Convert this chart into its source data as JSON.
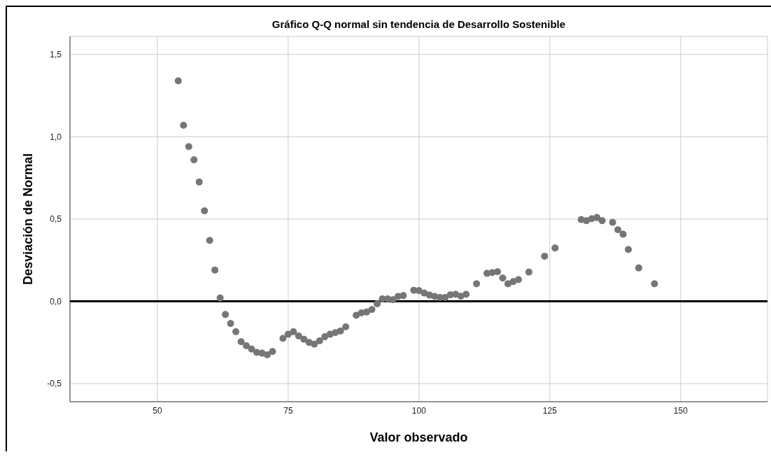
{
  "chart_data": {
    "type": "scatter",
    "title": "Gráfico Q-Q normal sin tendencia de Desarrollo Sostenible",
    "xlabel": "Valor observado",
    "ylabel": "Desviación de Normal",
    "x": [
      54,
      55,
      56,
      57,
      58,
      59,
      60,
      61,
      62,
      63,
      64,
      65,
      66,
      67,
      68,
      69,
      70,
      71,
      72,
      74,
      75,
      76,
      77,
      78,
      79,
      80,
      81,
      82,
      83,
      84,
      85,
      86,
      88,
      89,
      90,
      91,
      92,
      93,
      94,
      95,
      96,
      97,
      99,
      100,
      101,
      102,
      103,
      104,
      105,
      106,
      107,
      108,
      109,
      111,
      113,
      114,
      115,
      116,
      117,
      118,
      119,
      121,
      124,
      126,
      131,
      132,
      133,
      134,
      135,
      137,
      138,
      139,
      140,
      142,
      145
    ],
    "values": [
      1.34,
      1.07,
      0.94,
      0.86,
      0.725,
      0.55,
      0.37,
      0.19,
      0.02,
      -0.08,
      -0.135,
      -0.185,
      -0.245,
      -0.27,
      -0.29,
      -0.31,
      -0.315,
      -0.325,
      -0.305,
      -0.225,
      -0.2,
      -0.185,
      -0.21,
      -0.23,
      -0.25,
      -0.26,
      -0.24,
      -0.215,
      -0.2,
      -0.19,
      -0.18,
      -0.155,
      -0.085,
      -0.07,
      -0.065,
      -0.05,
      -0.015,
      0.015,
      0.015,
      0.01,
      0.03,
      0.035,
      0.067,
      0.065,
      0.05,
      0.038,
      0.03,
      0.024,
      0.024,
      0.04,
      0.043,
      0.031,
      0.043,
      0.107,
      0.17,
      0.175,
      0.18,
      0.142,
      0.107,
      0.12,
      0.132,
      0.178,
      0.274,
      0.324,
      0.497,
      0.49,
      0.502,
      0.509,
      0.49,
      0.48,
      0.435,
      0.408,
      0.315,
      0.203,
      0.107
    ],
    "color": "#767676",
    "marker": "circle",
    "xlim": [
      33.3,
      166.6
    ],
    "ylim": [
      -0.61,
      1.61
    ],
    "xticks": [
      50,
      75,
      100,
      125,
      150
    ],
    "yticks": [
      {
        "value": -0.5,
        "label": "-0,5"
      },
      {
        "value": 0,
        "label": "0,0"
      },
      {
        "value": 0.5,
        "label": "0,5"
      },
      {
        "value": 1,
        "label": "1,0"
      },
      {
        "value": 1.5,
        "label": "1,5"
      }
    ],
    "grid": true,
    "ref_lines": [
      {
        "axis": "y",
        "value": 0,
        "color": "#000000"
      }
    ]
  }
}
